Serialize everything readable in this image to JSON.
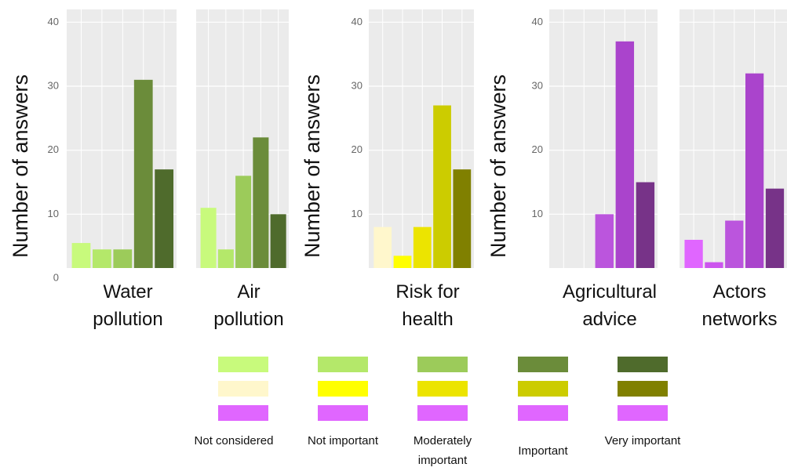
{
  "chart_data": [
    {
      "type": "bar",
      "title": "Water pollution",
      "ylabel": "Number of answers",
      "values": [
        5.5,
        4.5,
        4.5,
        31,
        17
      ],
      "colors": [
        "#c8fa7c",
        "#b4e86a",
        "#9ccb5a",
        "#6b8c3a",
        "#4f6b2c"
      ],
      "ylim": [
        0,
        42
      ],
      "yticks": [
        0,
        10,
        20,
        30,
        40
      ],
      "tick_labels": true,
      "grid": true
    },
    {
      "type": "bar",
      "title": "Air pollution",
      "values": [
        11,
        4.5,
        16,
        22,
        10
      ],
      "colors": [
        "#c8fa7c",
        "#b4e86a",
        "#9ccb5a",
        "#6b8c3a",
        "#4f6b2c"
      ],
      "ylim": [
        0,
        42
      ],
      "yticks": [
        0,
        10,
        20,
        30,
        40
      ],
      "tick_labels": false,
      "grid": true
    },
    {
      "type": "bar",
      "title": "Risk for health",
      "ylabel": "Number of answers",
      "values": [
        8,
        3.5,
        8,
        27,
        17
      ],
      "colors": [
        "#fff7cc",
        "#ffff00",
        "#ece400",
        "#cccc00",
        "#808000"
      ],
      "ylim": [
        0,
        42
      ],
      "yticks": [
        10,
        20,
        30,
        40
      ],
      "tick_labels": true,
      "grid": true
    },
    {
      "type": "bar",
      "title": "Agricultural advice",
      "ylabel": "Number of answers",
      "values": [
        1,
        0,
        10,
        37,
        15
      ],
      "colors": [
        "#ee99ff",
        "#dd66ee",
        "#bb55dd",
        "#aa44cc",
        "#773388"
      ],
      "ylim": [
        0,
        42
      ],
      "yticks": [
        10,
        20,
        30,
        40
      ],
      "tick_labels": true,
      "grid": true
    },
    {
      "type": "bar",
      "title": "Actors networks",
      "values": [
        6,
        2.5,
        9,
        32,
        14
      ],
      "colors": [
        "#e066ff",
        "#cc55ee",
        "#bb55dd",
        "#aa44cc",
        "#773388"
      ],
      "ylim": [
        0,
        42
      ],
      "yticks": [
        0,
        10,
        20,
        30,
        40
      ],
      "tick_labels": false,
      "grid": true
    }
  ],
  "legend": {
    "labels": [
      "Not considered",
      "Not important",
      "Moderately important",
      "Important",
      "Very important"
    ],
    "rows": [
      [
        "#c8fa7c",
        "#b4e86a",
        "#9ccb5a",
        "#6b8c3a",
        "#4f6b2c"
      ],
      [
        "#fff7cc",
        "#ffff00",
        "#ece400",
        "#cccc00",
        "#808000"
      ],
      [
        "#e066ff",
        "#e066ff",
        "#e066ff",
        "#e066ff",
        "#e066ff"
      ]
    ]
  }
}
